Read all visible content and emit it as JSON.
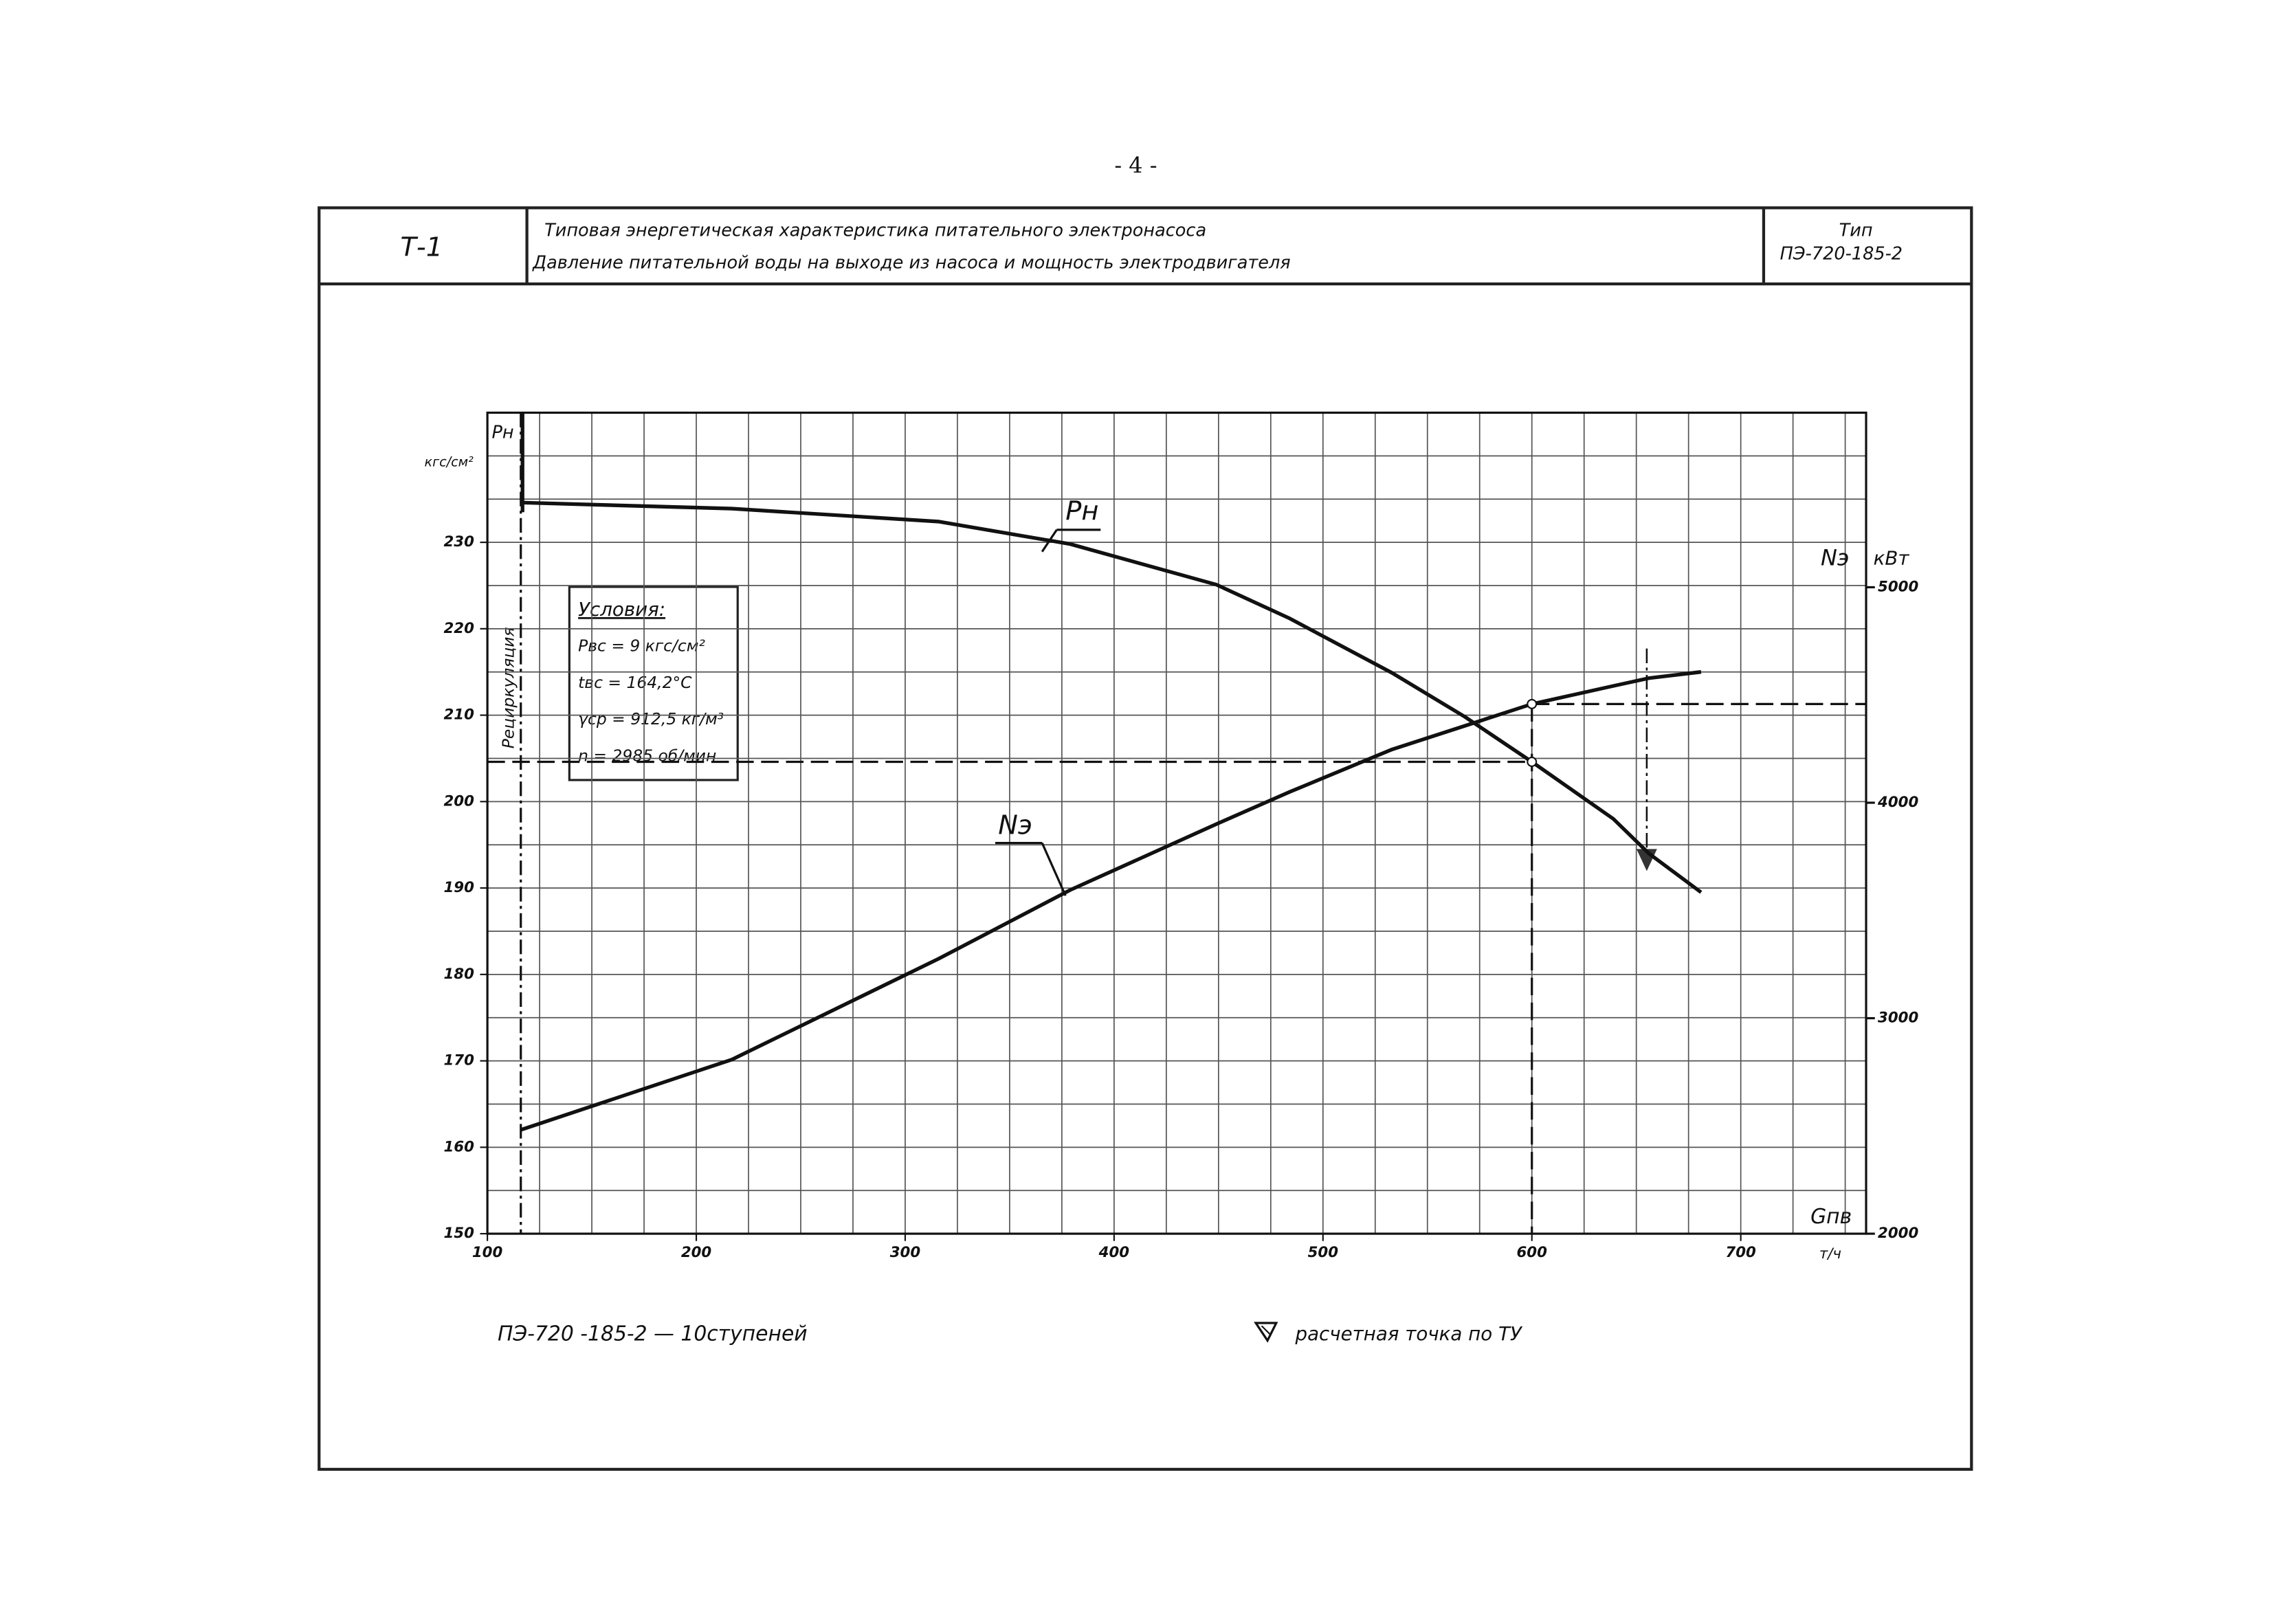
{
  "page_number": "- 4 -",
  "header": {
    "code": "Т-1",
    "title_lines": [
      "Типовая энергетическая характеристика питательного электронасоса",
      "Давление питательной воды на выходе из насоса и мощность электродвигателя"
    ],
    "type_label": "Тип",
    "type_value": "ПЭ-720-185-2"
  },
  "conditions": [
    "Условия:",
    "Pвс = 9 кгс/см²",
    "tвс = 164,2°С",
    "γср = 912,5 кг/м³",
    "n = 2985 об/мин"
  ],
  "recirculation_label": "Рециркуляция",
  "footer": {
    "pump": "ПЭ-720 -185-2 — 10ступеней",
    "legend": "расчетная точка по ТУ"
  },
  "chart_data": {
    "type": "line",
    "xlabel": "Gпв",
    "xunit": "т/ч",
    "ylabel": "кгс/см²",
    "y2label": "кВт",
    "x": [
      116,
      217,
      316,
      379,
      449,
      484,
      533,
      568,
      600,
      639,
      656,
      681
    ],
    "series": [
      {
        "name": "Pн",
        "color": "#111111",
        "values": [
          234.6,
          233.9,
          232.4,
          229.8,
          225.1,
          221.2,
          214.9,
          209.8,
          204.6,
          198,
          194,
          189.5
        ]
      },
      {
        "name": "Nэ",
        "color": "#111111",
        "axis": "y2",
        "values": [
          2482,
          2808,
          3276,
          3595,
          3901,
          4050,
          4247,
          4357,
          4458,
          4542,
          4578,
          4607
        ]
      }
    ],
    "xlim": [
      100,
      760
    ],
    "xticks": [
      100,
      200,
      300,
      400,
      500,
      600,
      700
    ],
    "ylim": [
      150,
      245
    ],
    "yticks": [
      150,
      160,
      170,
      180,
      190,
      200,
      210,
      220,
      230
    ],
    "y2lim": [
      2000,
      5810
    ],
    "y2ticks": [
      2000,
      3000,
      4000,
      5000
    ],
    "grid": true,
    "x_grid_step": 25,
    "y_grid_step": 5,
    "design_point": {
      "x": 600,
      "y": 204.6,
      "y2": 4458
    },
    "rated_point": {
      "x": 655,
      "y": 194
    },
    "recirculation_x": 116
  }
}
